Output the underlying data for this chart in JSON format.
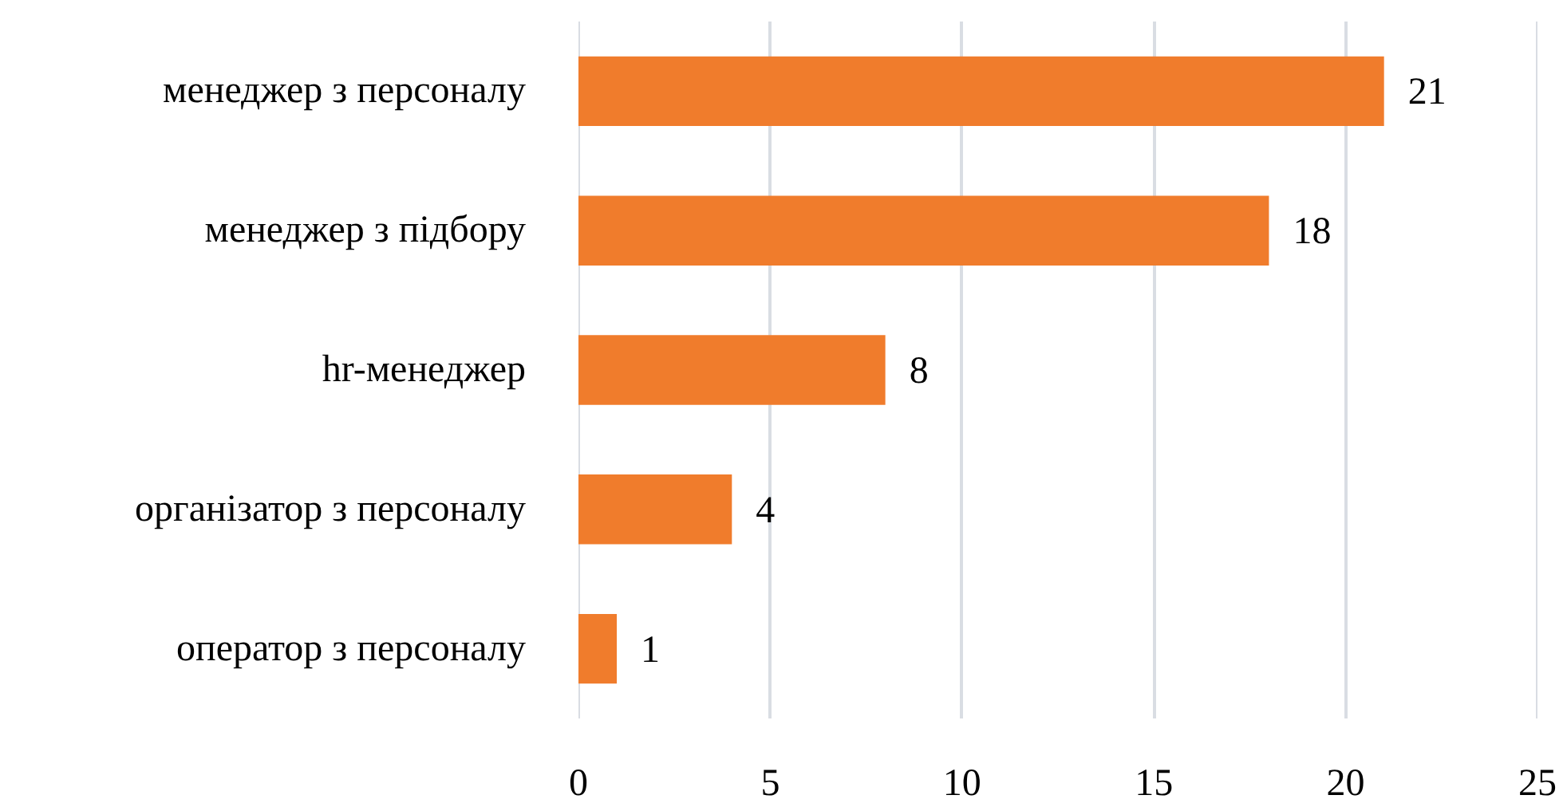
{
  "chart_data": {
    "type": "bar",
    "orientation": "horizontal",
    "categories": [
      "менеджер з персоналу",
      "менеджер з підбору",
      "hr-менеджер",
      "організатор з персоналу",
      "оператор з персоналу"
    ],
    "values": [
      21,
      18,
      8,
      4,
      1
    ],
    "color": "#f07c2c",
    "xlim": [
      0,
      25
    ],
    "xticks": [
      0,
      5,
      10,
      15,
      20,
      25
    ],
    "grid": "x",
    "data_labels": true
  }
}
